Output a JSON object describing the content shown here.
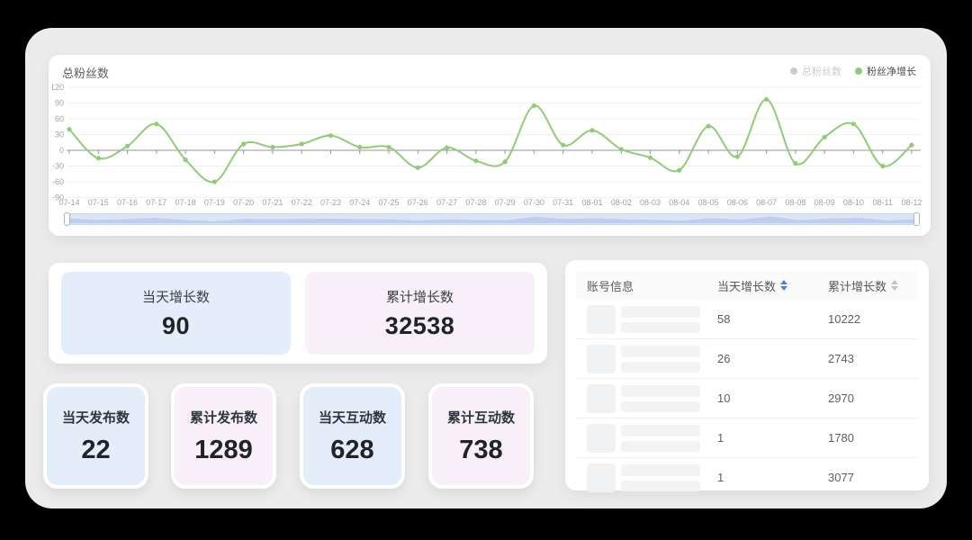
{
  "colors": {
    "page_bg": "#000000",
    "board_bg": "#ececec",
    "accent_green": "#91cc75",
    "inactive_legend": "#c9ccd0",
    "blue_tint": "#e4eefa",
    "pink_tint": "#f8eff8",
    "sort_active_blue": "#4d7fe8",
    "sort_inactive_gray": "#c0c4cc"
  },
  "chart_panel": {
    "title": "总粉丝数",
    "legend": [
      {
        "label": "总粉丝数",
        "color": "#c9ccd0",
        "active": false
      },
      {
        "label": "粉丝净增长",
        "color": "#91cc75",
        "active": true
      }
    ],
    "datazoom": {
      "range": "100%",
      "fill": "#dce5f7"
    }
  },
  "chart_data": {
    "type": "line",
    "title": "总粉丝数",
    "smooth": true,
    "grid": true,
    "legend_position": "top-right",
    "ylim": [
      -90,
      120
    ],
    "yticks": [
      120,
      90,
      60,
      30,
      0,
      -30,
      -60,
      -90
    ],
    "categories": [
      "07-14",
      "07-15",
      "07-16",
      "07-17",
      "07-18",
      "07-19",
      "07-20",
      "07-21",
      "07-22",
      "07-23",
      "07-24",
      "07-25",
      "07-26",
      "07-27",
      "07-28",
      "07-29",
      "07-30",
      "07-31",
      "08-01",
      "08-02",
      "08-03",
      "08-04",
      "08-05",
      "08-06",
      "08-07",
      "08-08",
      "08-09",
      "08-10",
      "08-11",
      "08-12"
    ],
    "series": [
      {
        "name": "粉丝净增长",
        "color": "#91cc75",
        "values": [
          40,
          -15,
          8,
          50,
          -18,
          -60,
          12,
          6,
          12,
          28,
          6,
          6,
          -33,
          5,
          -20,
          -22,
          85,
          10,
          38,
          2,
          -14,
          -38,
          46,
          -12,
          97,
          -25,
          25,
          50,
          -30,
          10
        ]
      }
    ]
  },
  "stats": {
    "big_cards": [
      {
        "label": "当天增长数",
        "value": "90"
      },
      {
        "label": "累计增长数",
        "value": "32538"
      }
    ],
    "small_cards": [
      {
        "label": "当天发布数",
        "value": "22"
      },
      {
        "label": "累计发布数",
        "value": "1289"
      },
      {
        "label": "当天互动数",
        "value": "628"
      },
      {
        "label": "累计互动数",
        "value": "738"
      }
    ]
  },
  "table": {
    "columns": [
      {
        "label": "账号信息",
        "sortable": false
      },
      {
        "label": "当天增长数",
        "sortable": true,
        "sort_active": true
      },
      {
        "label": "累计增长数",
        "sortable": true,
        "sort_active": false
      }
    ],
    "rows": [
      {
        "today": "58",
        "total": "10222"
      },
      {
        "today": "26",
        "total": "2743"
      },
      {
        "today": "10",
        "total": "2970"
      },
      {
        "today": "1",
        "total": "1780"
      },
      {
        "today": "1",
        "total": "3077"
      }
    ]
  }
}
